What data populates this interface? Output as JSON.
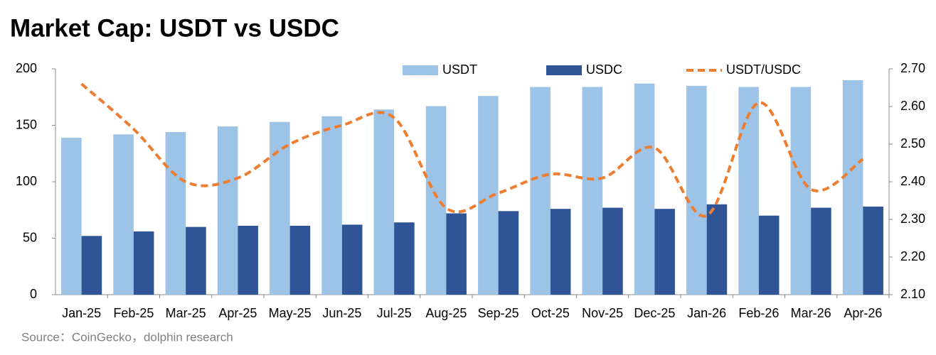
{
  "chart_data": {
    "type": "bar_line",
    "title": "Market Cap: USDT vs USDC",
    "source": "Source：CoinGecko，dolphin research",
    "categories": [
      "Jan-25",
      "Feb-25",
      "Mar-25",
      "Apr-25",
      "May-25",
      "Jun-25",
      "Jul-25",
      "Aug-25",
      "Sep-25",
      "Oct-25",
      "Nov-25",
      "Dec-25",
      "Jan-26",
      "Feb-26",
      "Mar-26",
      "Apr-26"
    ],
    "series": [
      {
        "name": "USDT",
        "type": "bar",
        "color": "#9dc3e6",
        "values": [
          139,
          142,
          144,
          149,
          153,
          158,
          164,
          167,
          176,
          184,
          184,
          187,
          185,
          184,
          184,
          190
        ]
      },
      {
        "name": "USDC",
        "type": "bar",
        "color": "#2f5597",
        "values": [
          52,
          56,
          60,
          61,
          61,
          62,
          64,
          72,
          74,
          76,
          77,
          76,
          80,
          70,
          77,
          78
        ]
      },
      {
        "name": "USDT/USDC",
        "type": "line",
        "axis": "y2",
        "color": "#ed7d31",
        "dashed": true,
        "values": [
          2.66,
          2.54,
          2.4,
          2.41,
          2.5,
          2.55,
          2.57,
          2.33,
          2.37,
          2.42,
          2.41,
          2.49,
          2.31,
          2.61,
          2.38,
          2.46
        ]
      }
    ],
    "ylim": [
      0,
      200
    ],
    "yticks": [
      0,
      50,
      100,
      150,
      200
    ],
    "y2lim": [
      2.1,
      2.7
    ],
    "y2ticks": [
      {
        "value": 2.1,
        "label": "2.10"
      },
      {
        "value": 2.2,
        "label": "2.20"
      },
      {
        "value": 2.3,
        "label": "2.30"
      },
      {
        "value": 2.4,
        "label": "2.40"
      },
      {
        "value": 2.5,
        "label": "2.50"
      },
      {
        "value": 2.6,
        "label": "2.60"
      },
      {
        "value": 2.7,
        "label": "2.70"
      }
    ],
    "grid": false,
    "legend": "top"
  }
}
